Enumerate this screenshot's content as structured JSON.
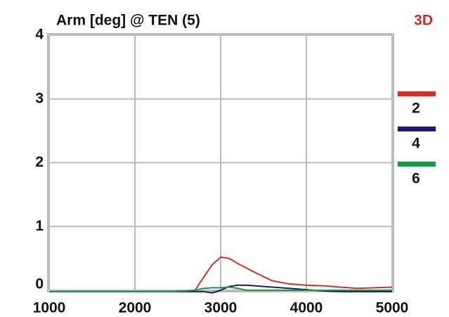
{
  "chart_data": {
    "type": "line",
    "title": "Arm [deg] @ TEN (5)",
    "annotation": "3D",
    "x": [
      1000,
      1500,
      2000,
      2400,
      2600,
      2700,
      2800,
      2900,
      3000,
      3100,
      3200,
      3300,
      3400,
      3600,
      3800,
      4000,
      4200,
      4400,
      4600,
      4800,
      5000
    ],
    "series": [
      {
        "name": "2",
        "color": "#d42e27",
        "values": [
          -0.02,
          -0.02,
          -0.02,
          -0.02,
          -0.01,
          0,
          0.2,
          0.4,
          0.52,
          0.5,
          0.42,
          0.35,
          0.28,
          0.15,
          0.1,
          0.08,
          0.07,
          0.05,
          0.03,
          0.04,
          0.05
        ]
      },
      {
        "name": "4",
        "color": "#25146f",
        "values": [
          -0.02,
          -0.02,
          -0.02,
          -0.02,
          -0.02,
          -0.02,
          -0.02,
          -0.04,
          0,
          0.06,
          0.08,
          0.08,
          0.07,
          0.05,
          0.03,
          0.01,
          -0.01,
          -0.02,
          -0.02,
          -0.02,
          -0.02
        ]
      },
      {
        "name": "6",
        "color": "#149a45",
        "values": [
          -0.02,
          -0.02,
          -0.02,
          -0.02,
          -0.01,
          0,
          0.03,
          0.04,
          0.04,
          0.05,
          0.03,
          0,
          0,
          0,
          0,
          0,
          0,
          0,
          0,
          0,
          0
        ]
      }
    ],
    "xlim": [
      1000,
      5000
    ],
    "xticks": [
      1000,
      2000,
      3000,
      4000,
      5000
    ],
    "ylim": [
      0,
      4
    ],
    "yticks": [
      0,
      1,
      2,
      3,
      4
    ],
    "grid": true
  }
}
